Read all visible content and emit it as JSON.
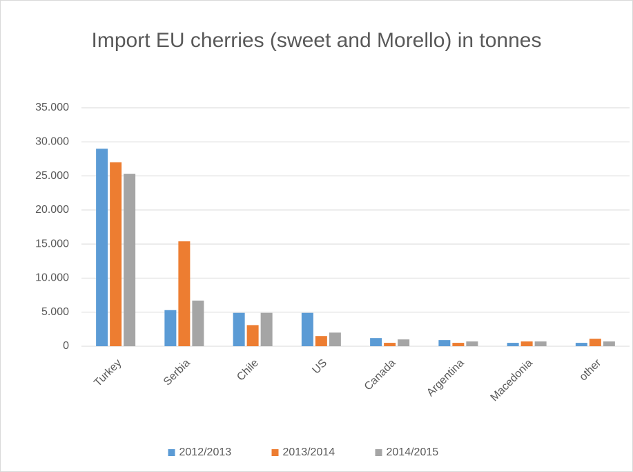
{
  "chart_data": {
    "type": "bar",
    "title": "Import EU cherries (sweet and Morello) in tonnes",
    "categories": [
      "Turkey",
      "Serbia",
      "Chile",
      "US",
      "Canada",
      "Argentina",
      "Macedonia",
      "other"
    ],
    "series": [
      {
        "name": "2012/2013",
        "color": "#5b9bd5",
        "values": [
          29000,
          5300,
          4900,
          4900,
          1200,
          900,
          500,
          500
        ]
      },
      {
        "name": "2013/2014",
        "color": "#ed7d31",
        "values": [
          27000,
          15400,
          3100,
          1500,
          500,
          500,
          700,
          1100
        ]
      },
      {
        "name": "2014/2015",
        "color": "#a5a5a5",
        "values": [
          25300,
          6700,
          4900,
          2000,
          1000,
          700,
          700,
          700
        ]
      }
    ],
    "ylim": [
      0,
      35000
    ],
    "yticks": [
      0,
      {
        "value": 5000,
        "label": "5.000"
      },
      {
        "value": 10000,
        "label": "10.000"
      },
      {
        "value": 15000,
        "label": "15.000"
      },
      {
        "value": 20000,
        "label": "20.000"
      },
      {
        "value": 25000,
        "label": "25.000"
      },
      {
        "value": 30000,
        "label": "30.000"
      },
      {
        "value": 35000,
        "label": "35.000"
      }
    ],
    "grid": true,
    "legend": "bottom"
  }
}
